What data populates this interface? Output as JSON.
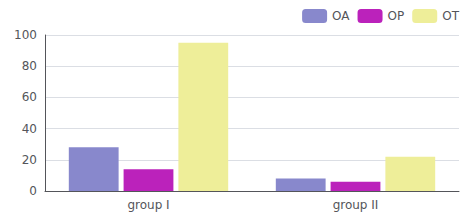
{
  "chart_data": {
    "type": "bar",
    "categories": [
      "group I",
      "group II"
    ],
    "series": [
      {
        "name": "OA",
        "color": "#8888cc",
        "values": [
          28,
          8
        ]
      },
      {
        "name": "OP",
        "color": "#bb22bb",
        "values": [
          14,
          6
        ]
      },
      {
        "name": "OT",
        "color": "#eeee99",
        "values": [
          95,
          22
        ]
      }
    ],
    "ylim": [
      0,
      100
    ],
    "yticks": [
      0,
      20,
      40,
      60,
      80,
      100
    ],
    "grid": true,
    "legend": "upper right"
  }
}
